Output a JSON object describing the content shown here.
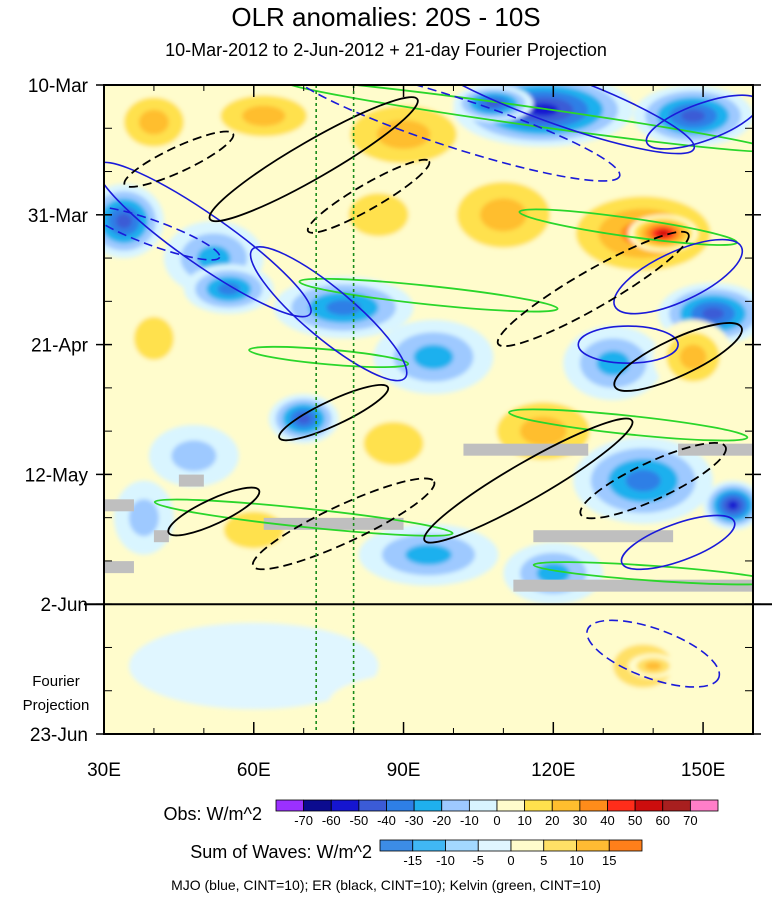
{
  "chart_data": {
    "type": "heatmap",
    "title": "OLR anomalies: 20S - 10S",
    "subtitle": "10-Mar-2012 to 2-Jun-2012 + 21-day Fourier Projection",
    "x_axis": {
      "label": "",
      "range": [
        30,
        160
      ],
      "ticks": [
        30,
        60,
        90,
        120,
        150
      ],
      "tick_labels": [
        "30E",
        "60E",
        "90E",
        "120E",
        "150E"
      ]
    },
    "y_axis": {
      "label": "",
      "range_days": [
        0,
        105
      ],
      "ticks_days": [
        0,
        21,
        42,
        63,
        84,
        105
      ],
      "tick_labels": [
        "10-Mar",
        "31-Mar",
        "21-Apr",
        "12-May",
        "2-Jun",
        "23-Jun"
      ],
      "observation_end_day": 84,
      "projection_label_lines": [
        "Fourier",
        "Projection"
      ]
    },
    "reference_lines_lon": [
      72.5,
      80
    ],
    "obs_colorbar": {
      "label": "Obs: W/m^2",
      "levels": [
        -70,
        -60,
        -50,
        -40,
        -30,
        -20,
        -10,
        0,
        10,
        20,
        30,
        40,
        50,
        60,
        70
      ],
      "colors": [
        "#9b30ff",
        "#0b0b8f",
        "#1515d0",
        "#3b5bd6",
        "#2e7fe6",
        "#1fb0ee",
        "#9ec9ff",
        "#d9f5ff",
        "#fffccc",
        "#ffe14d",
        "#ffbe2e",
        "#ff8c1a",
        "#ff2d1a",
        "#cc0d0d",
        "#a81f1f",
        "#ff7ec8"
      ]
    },
    "waves_colorbar": {
      "label": "Sum of Waves: W/m^2",
      "levels": [
        -15,
        -10,
        -5,
        0,
        5,
        10,
        15
      ],
      "colors": [
        "#3c8ce6",
        "#40b7f5",
        "#a3d8ff",
        "#e0f6ff",
        "#fffccc",
        "#ffe066",
        "#ffbb33",
        "#ff7f1a"
      ]
    },
    "contour_legend": "MJO (blue, CINT=10); ER (black, CINT=10); Kelvin (green, CINT=10)",
    "wave_contour_colors": {
      "mjo": "#1a1ad9",
      "er": "#000000",
      "kelvin": "#2ad62a"
    },
    "anomaly_blobs": [
      {
        "lon": 40,
        "day": 6,
        "rx": 9,
        "ry": 6,
        "v": 25
      },
      {
        "lon": 62,
        "day": 5,
        "rx": 13,
        "ry": 5,
        "v": 30
      },
      {
        "lon": 90,
        "day": 8,
        "rx": 16,
        "ry": 7,
        "v": 25
      },
      {
        "lon": 118,
        "day": 4,
        "rx": 18,
        "ry": 6,
        "v": -55
      },
      {
        "lon": 108,
        "day": 3,
        "rx": 8,
        "ry": 3,
        "v": -45
      },
      {
        "lon": 148,
        "day": 5,
        "rx": 12,
        "ry": 5,
        "v": -45
      },
      {
        "lon": 34,
        "day": 22,
        "rx": 8,
        "ry": 6,
        "v": -45
      },
      {
        "lon": 52,
        "day": 28,
        "rx": 10,
        "ry": 6,
        "v": -30
      },
      {
        "lon": 85,
        "day": 21,
        "rx": 12,
        "ry": 7,
        "v": 20
      },
      {
        "lon": 110,
        "day": 21,
        "rx": 14,
        "ry": 8,
        "v": 30
      },
      {
        "lon": 138,
        "day": 24,
        "rx": 18,
        "ry": 8,
        "v": 40
      },
      {
        "lon": 142,
        "day": 24,
        "rx": 7,
        "ry": 3,
        "v": 55
      },
      {
        "lon": 55,
        "day": 33,
        "rx": 9,
        "ry": 4,
        "v": -40
      },
      {
        "lon": 78,
        "day": 36,
        "rx": 14,
        "ry": 5,
        "v": -40
      },
      {
        "lon": 96,
        "day": 44,
        "rx": 12,
        "ry": 6,
        "v": -30
      },
      {
        "lon": 152,
        "day": 37,
        "rx": 11,
        "ry": 5,
        "v": -50
      },
      {
        "lon": 132,
        "day": 45,
        "rx": 10,
        "ry": 6,
        "v": -30
      },
      {
        "lon": 148,
        "day": 44,
        "rx": 8,
        "ry": 6,
        "v": 30
      },
      {
        "lon": 40,
        "day": 41,
        "rx": 8,
        "ry": 7,
        "v": 15
      },
      {
        "lon": 70,
        "day": 54,
        "rx": 7,
        "ry": 4,
        "v": -50
      },
      {
        "lon": 48,
        "day": 60,
        "rx": 9,
        "ry": 5,
        "v": -20
      },
      {
        "lon": 88,
        "day": 58,
        "rx": 12,
        "ry": 7,
        "v": 15
      },
      {
        "lon": 118,
        "day": 56,
        "rx": 14,
        "ry": 7,
        "v": 25
      },
      {
        "lon": 138,
        "day": 64,
        "rx": 14,
        "ry": 7,
        "v": -40
      },
      {
        "lon": 156,
        "day": 68,
        "rx": 6,
        "ry": 4,
        "v": -55
      },
      {
        "lon": 60,
        "day": 72,
        "rx": 12,
        "ry": 6,
        "v": 20
      },
      {
        "lon": 95,
        "day": 76,
        "rx": 14,
        "ry": 5,
        "v": -25
      },
      {
        "lon": 120,
        "day": 79,
        "rx": 10,
        "ry": 5,
        "v": -30
      },
      {
        "lon": 38,
        "day": 70,
        "rx": 6,
        "ry": 6,
        "v": -15
      },
      {
        "lon": 138,
        "day": 94,
        "rx": 12,
        "ry": 7,
        "v": 10
      },
      {
        "lon": 140,
        "day": 94,
        "rx": 5,
        "ry": 2,
        "v": 15
      },
      {
        "lon": 60,
        "day": 94,
        "rx": 25,
        "ry": 7,
        "v": -5
      },
      {
        "lon": 95,
        "day": 100,
        "rx": 20,
        "ry": 5,
        "v": 5
      }
    ],
    "mjo_contours": [
      {
        "lon": 100,
        "day": 6,
        "rx": 35,
        "ry": 4,
        "angle": 18,
        "dashed": true
      },
      {
        "lon": 120,
        "day": 2,
        "rx": 30,
        "ry": 4,
        "angle": 20,
        "dashed": false
      },
      {
        "lon": 150,
        "day": 6,
        "rx": 12,
        "ry": 3,
        "angle": -20,
        "dashed": false
      },
      {
        "lon": 50,
        "day": 25,
        "rx": 26,
        "ry": 4,
        "angle": 35,
        "dashed": false
      },
      {
        "lon": 75,
        "day": 37,
        "rx": 20,
        "ry": 4,
        "angle": 40,
        "dashed": false
      },
      {
        "lon": 145,
        "day": 31,
        "rx": 14,
        "ry": 4,
        "angle": -25,
        "dashed": false
      },
      {
        "lon": 135,
        "day": 42,
        "rx": 10,
        "ry": 3,
        "angle": 0,
        "dashed": false
      },
      {
        "lon": 145,
        "day": 74,
        "rx": 12,
        "ry": 3,
        "angle": -20,
        "dashed": false
      },
      {
        "lon": 140,
        "day": 92,
        "rx": 14,
        "ry": 4,
        "angle": 20,
        "dashed": true
      },
      {
        "lon": 40,
        "day": 24,
        "rx": 14,
        "ry": 2,
        "angle": 20,
        "dashed": true
      }
    ],
    "er_contours": [
      {
        "lon": 72,
        "day": 12,
        "rx": 24,
        "ry": 3,
        "angle": -30,
        "dashed": false
      },
      {
        "lon": 45,
        "day": 12,
        "rx": 12,
        "ry": 2,
        "angle": -25,
        "dashed": true
      },
      {
        "lon": 83,
        "day": 18,
        "rx": 14,
        "ry": 2,
        "angle": -30,
        "dashed": true
      },
      {
        "lon": 128,
        "day": 33,
        "rx": 22,
        "ry": 3,
        "angle": -30,
        "dashed": true
      },
      {
        "lon": 76,
        "day": 53,
        "rx": 12,
        "ry": 2,
        "angle": -25,
        "dashed": false
      },
      {
        "lon": 52,
        "day": 69,
        "rx": 10,
        "ry": 2,
        "angle": -25,
        "dashed": false
      },
      {
        "lon": 115,
        "day": 64,
        "rx": 24,
        "ry": 3,
        "angle": -30,
        "dashed": false
      },
      {
        "lon": 78,
        "day": 71,
        "rx": 20,
        "ry": 3,
        "angle": -25,
        "dashed": true
      },
      {
        "lon": 140,
        "day": 64,
        "rx": 16,
        "ry": 3,
        "angle": -25,
        "dashed": true
      },
      {
        "lon": 145,
        "day": 44,
        "rx": 14,
        "ry": 3,
        "angle": -25,
        "dashed": false
      }
    ],
    "kelvin_contours": [
      {
        "lon": 115,
        "day": 5,
        "rx": 50,
        "ry": 1.5,
        "angle": 8
      },
      {
        "lon": 135,
        "day": 23,
        "rx": 22,
        "ry": 1.5,
        "angle": 8
      },
      {
        "lon": 95,
        "day": 34,
        "rx": 26,
        "ry": 1.5,
        "angle": 6
      },
      {
        "lon": 75,
        "day": 44,
        "rx": 16,
        "ry": 1.2,
        "angle": 5
      },
      {
        "lon": 135,
        "day": 55,
        "rx": 24,
        "ry": 1.5,
        "angle": 6
      },
      {
        "lon": 70,
        "day": 70,
        "rx": 30,
        "ry": 1.5,
        "angle": 6
      },
      {
        "lon": 140,
        "day": 79,
        "rx": 24,
        "ry": 1.2,
        "angle": 4
      }
    ],
    "missing_data_bars": [
      {
        "lon0": 102,
        "lon1": 127,
        "day": 59
      },
      {
        "lon0": 145,
        "lon1": 160,
        "day": 59
      },
      {
        "lon0": 45,
        "lon1": 50,
        "day": 64
      },
      {
        "lon0": 30,
        "lon1": 36,
        "day": 68
      },
      {
        "lon0": 62,
        "lon1": 90,
        "day": 71
      },
      {
        "lon0": 40,
        "lon1": 43,
        "day": 73
      },
      {
        "lon0": 116,
        "lon1": 144,
        "day": 73
      },
      {
        "lon0": 30,
        "lon1": 36,
        "day": 78
      },
      {
        "lon0": 112,
        "lon1": 160,
        "day": 81
      }
    ]
  }
}
